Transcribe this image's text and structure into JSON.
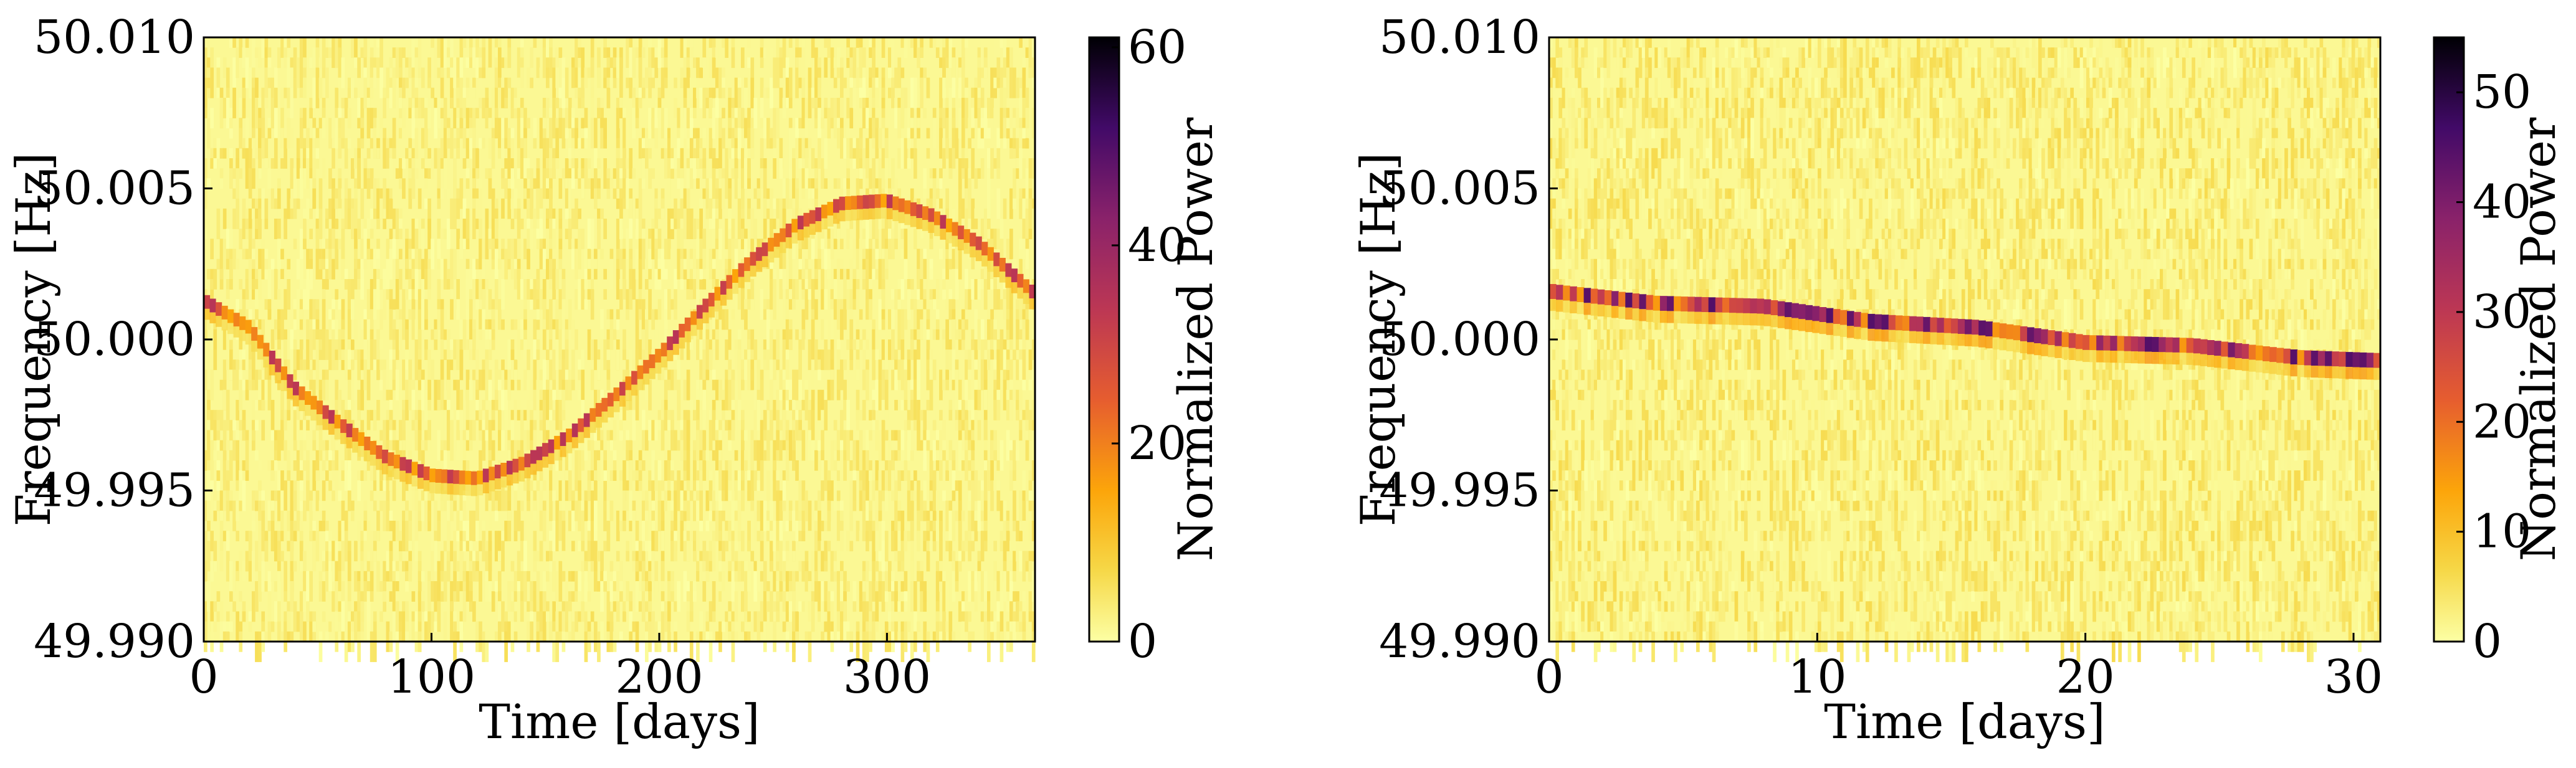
{
  "chart_data": [
    {
      "type": "heatmap",
      "title": "",
      "xlabel": "Time [days]",
      "ylabel": "Frequency [Hz]",
      "xlim": [
        0,
        365
      ],
      "ylim": [
        49.99,
        50.01
      ],
      "xticks": [
        0,
        100,
        200,
        300
      ],
      "xtick_labels": [
        "0",
        "100",
        "200",
        "300"
      ],
      "yticks": [
        49.99,
        49.995,
        50.0,
        50.005,
        50.01
      ],
      "ytick_labels": [
        "49.990",
        "49.995",
        "50.000",
        "50.005",
        "50.010"
      ],
      "colorbar": {
        "label": "Normalized Power",
        "range": [
          0,
          61
        ],
        "ticks": [
          0,
          20,
          40,
          60
        ],
        "tick_labels": [
          "0",
          "20",
          "40",
          "60"
        ],
        "colormap": "inferno_r"
      },
      "track": {
        "description": "sinusoidal signal track",
        "center_hz": 50.0,
        "amplitude_hz": 0.005,
        "period_days": 365,
        "phase_peak_day": 292,
        "value_range": [
          15,
          35
        ],
        "x": [
          0,
          20,
          40,
          60,
          80,
          100,
          120,
          140,
          160,
          180,
          200,
          220,
          240,
          260,
          280,
          300,
          320,
          340,
          365
        ],
        "y": [
          50.0013,
          50.0004,
          49.9984,
          49.9972,
          49.9961,
          49.9955,
          49.9954,
          49.9959,
          49.9968,
          49.9981,
          49.9995,
          50.0011,
          50.0026,
          50.0038,
          50.0045,
          50.0046,
          50.0041,
          50.0032,
          50.0015
        ]
      },
      "noise_value_range": [
        0,
        6
      ]
    },
    {
      "type": "heatmap",
      "title": "",
      "xlabel": "Time [days]",
      "ylabel": "Frequency [Hz]",
      "xlim": [
        0,
        31
      ],
      "ylim": [
        49.99,
        50.01
      ],
      "xticks": [
        0,
        10,
        20,
        30
      ],
      "xtick_labels": [
        "0",
        "10",
        "20",
        "30"
      ],
      "yticks": [
        49.99,
        49.995,
        50.0,
        50.005,
        50.01
      ],
      "ytick_labels": [
        "49.990",
        "49.995",
        "50.000",
        "50.005",
        "50.010"
      ],
      "colorbar": {
        "label": "Normalized Power",
        "range": [
          0,
          55
        ],
        "ticks": [
          0,
          10,
          20,
          30,
          40,
          50
        ],
        "tick_labels": [
          "0",
          "10",
          "20",
          "30",
          "40",
          "50"
        ],
        "colormap": "inferno_r"
      },
      "track": {
        "description": "slowly drifting signal track",
        "x": [
          0,
          4,
          8,
          12,
          16,
          20,
          24,
          28,
          31
        ],
        "y": [
          50.0016,
          50.0012,
          50.0011,
          50.0006,
          50.0004,
          49.9999,
          49.9998,
          49.9994,
          49.9993
        ],
        "value_range": [
          15,
          45
        ]
      },
      "noise_value_range": [
        0,
        6
      ]
    }
  ]
}
